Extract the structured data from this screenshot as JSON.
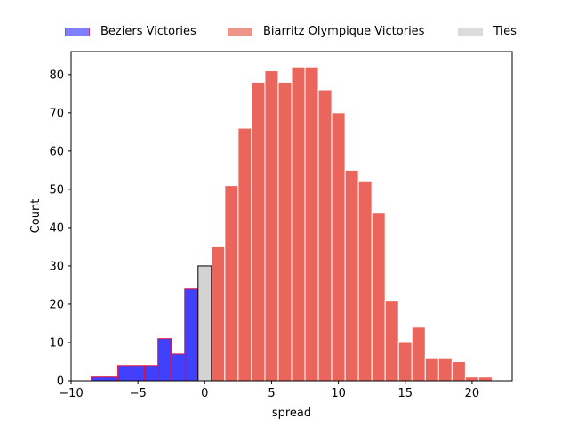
{
  "chart_data": {
    "type": "bar",
    "xlabel": "spread",
    "ylabel": "Count",
    "xlim": [
      -10,
      23
    ],
    "ylim": [
      0,
      86
    ],
    "x_ticks": [
      -10,
      -5,
      0,
      5,
      10,
      15,
      20
    ],
    "y_ticks": [
      0,
      10,
      20,
      30,
      40,
      50,
      60,
      70,
      80
    ],
    "x_tick_labels": [
      "−10",
      "−5",
      "0",
      "5",
      "10",
      "15",
      "20"
    ],
    "y_tick_labels": [
      "0",
      "10",
      "20",
      "30",
      "40",
      "50",
      "60",
      "70",
      "80"
    ],
    "grid": false,
    "legend_placement": "top-center",
    "bin_width": 1,
    "series": [
      {
        "name": "Beziers Victories",
        "color": "#0000ff",
        "edge_color": "#e0143c",
        "bins": [
          -8,
          -7,
          -6,
          -5,
          -4,
          -3,
          -2,
          -1
        ],
        "values": [
          1,
          1,
          4,
          4,
          4,
          11,
          7,
          24
        ]
      },
      {
        "name": "Biarritz Olympique Victories",
        "color": "#e8554a",
        "edge_color": "#ffffff",
        "bins": [
          1,
          2,
          3,
          4,
          5,
          6,
          7,
          8,
          9,
          10,
          11,
          12,
          13,
          14,
          15,
          16,
          17,
          18,
          19,
          20,
          21
        ],
        "values": [
          35,
          51,
          66,
          78,
          81,
          78,
          82,
          82,
          76,
          70,
          55,
          52,
          44,
          21,
          10,
          14,
          6,
          6,
          5,
          1,
          1
        ]
      },
      {
        "name": "Ties",
        "color": "#d3d3d3",
        "edge_color": "#000000",
        "bins": [
          0
        ],
        "values": [
          30
        ]
      }
    ]
  }
}
